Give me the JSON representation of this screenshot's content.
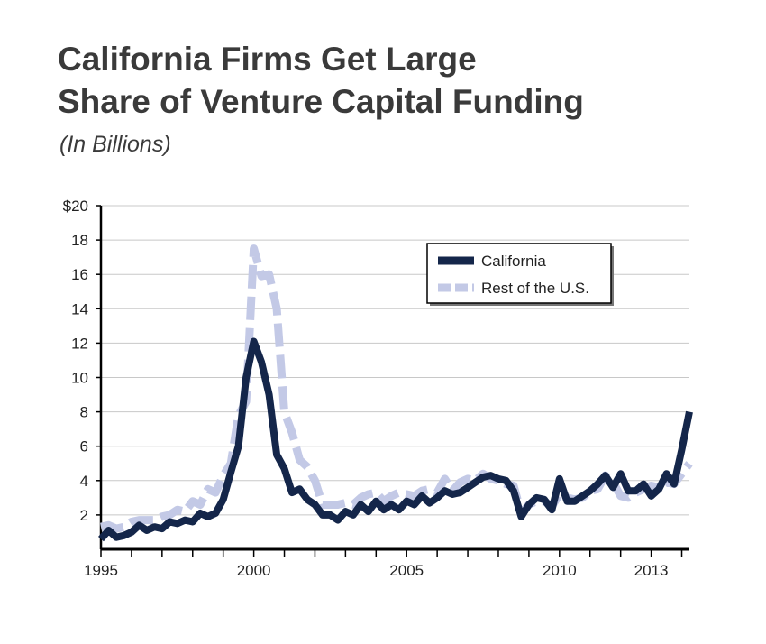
{
  "chart_data": {
    "type": "line",
    "title": "California Firms Get Large Share of Venture Capital Funding",
    "title_lines": [
      "California Firms Get Large",
      "Share of Venture Capital Funding"
    ],
    "subtitle": "(In Billions)",
    "xlabel": "",
    "ylabel": "",
    "ylim": [
      0,
      20
    ],
    "xlim": [
      1995,
      2014.25
    ],
    "y_ticks": [
      2,
      4,
      6,
      8,
      10,
      12,
      14,
      16,
      18,
      20
    ],
    "y_tick_labels": [
      "2",
      "4",
      "6",
      "8",
      "10",
      "12",
      "14",
      "16",
      "18",
      "$20"
    ],
    "x_ticks": [
      1995,
      2000,
      2005,
      2010,
      2013
    ],
    "x_tick_labels": [
      "1995",
      "2000",
      "2005",
      "2010",
      "2013"
    ],
    "grid": true,
    "legend_position": "top-right",
    "x": [
      1995.0,
      1995.25,
      1995.5,
      1995.75,
      1996.0,
      1996.25,
      1996.5,
      1996.75,
      1997.0,
      1997.25,
      1997.5,
      1997.75,
      1998.0,
      1998.25,
      1998.5,
      1998.75,
      1999.0,
      1999.25,
      1999.5,
      1999.75,
      2000.0,
      2000.25,
      2000.5,
      2000.75,
      2001.0,
      2001.25,
      2001.5,
      2001.75,
      2002.0,
      2002.25,
      2002.5,
      2002.75,
      2003.0,
      2003.25,
      2003.5,
      2003.75,
      2004.0,
      2004.25,
      2004.5,
      2004.75,
      2005.0,
      2005.25,
      2005.5,
      2005.75,
      2006.0,
      2006.25,
      2006.5,
      2006.75,
      2007.0,
      2007.25,
      2007.5,
      2007.75,
      2008.0,
      2008.25,
      2008.5,
      2008.75,
      2009.0,
      2009.25,
      2009.5,
      2009.75,
      2010.0,
      2010.25,
      2010.5,
      2010.75,
      2011.0,
      2011.25,
      2011.5,
      2011.75,
      2012.0,
      2012.25,
      2012.5,
      2012.75,
      2013.0,
      2013.25,
      2013.5,
      2013.75,
      2014.0,
      2014.25
    ],
    "series": [
      {
        "name": "California",
        "color": "#14264a",
        "style": "solid",
        "values": [
          0.6,
          1.1,
          0.7,
          0.8,
          1.0,
          1.4,
          1.1,
          1.3,
          1.2,
          1.6,
          1.5,
          1.7,
          1.6,
          2.1,
          1.9,
          2.1,
          2.9,
          4.5,
          6.0,
          10.0,
          12.1,
          10.9,
          9.0,
          5.5,
          4.7,
          3.3,
          3.5,
          2.9,
          2.6,
          2.0,
          2.0,
          1.7,
          2.2,
          2.0,
          2.6,
          2.2,
          2.8,
          2.3,
          2.6,
          2.3,
          2.8,
          2.6,
          3.1,
          2.7,
          3.0,
          3.4,
          3.2,
          3.3,
          3.6,
          3.9,
          4.2,
          4.3,
          4.1,
          4.0,
          3.4,
          1.9,
          2.6,
          3.0,
          2.9,
          2.3,
          4.1,
          2.8,
          2.8,
          3.1,
          3.4,
          3.8,
          4.3,
          3.6,
          4.4,
          3.4,
          3.4,
          3.8,
          3.1,
          3.5,
          4.4,
          3.8,
          5.8,
          8.0
        ]
      },
      {
        "name": "Rest of the U.S.",
        "color": "#c3c9e6",
        "style": "dashed",
        "values": [
          1.3,
          1.4,
          1.2,
          1.3,
          1.6,
          1.7,
          1.7,
          1.7,
          1.9,
          2.0,
          2.3,
          2.2,
          2.8,
          2.6,
          3.5,
          3.3,
          4.3,
          5.0,
          7.8,
          8.6,
          17.5,
          15.9,
          16.0,
          14.0,
          8.0,
          6.8,
          5.2,
          4.8,
          4.0,
          2.6,
          2.6,
          2.6,
          2.7,
          2.6,
          3.0,
          3.2,
          3.3,
          2.8,
          3.1,
          3.3,
          3.2,
          3.1,
          3.4,
          3.5,
          3.3,
          4.1,
          3.4,
          3.9,
          4.1,
          4.0,
          4.4,
          4.1,
          4.0,
          3.8,
          3.7,
          2.1,
          2.6,
          2.8,
          2.8,
          2.5,
          3.2,
          3.0,
          2.9,
          3.0,
          3.4,
          3.5,
          4.3,
          3.9,
          3.1,
          3.0,
          3.3,
          3.5,
          3.7,
          3.6,
          3.9,
          3.8,
          4.4,
          5.0
        ]
      }
    ]
  }
}
